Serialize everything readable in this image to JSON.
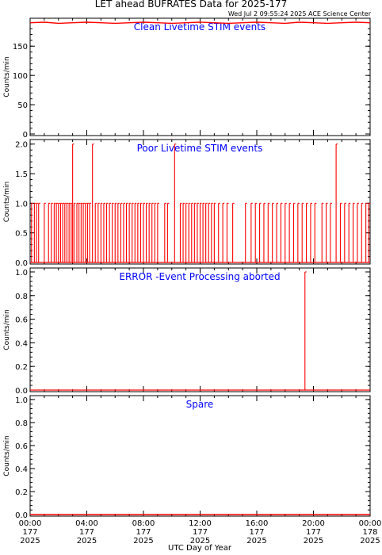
{
  "header": {
    "title": "LET ahead BUFRATES Data for 2025-177",
    "timestamp": "Wed Jul  2 09:55:24 2025 ACE Science Center"
  },
  "colors": {
    "data_line": "#ff0000",
    "panel_label": "#0000ff",
    "axis": "#000000",
    "background": "#ffffff"
  },
  "chart_data": [
    {
      "type": "line",
      "title": "Clean Livetime STIM events",
      "xlabel": "",
      "ylabel": "Counts/min",
      "xlim": [
        0,
        24
      ],
      "ylim": [
        0,
        195
      ],
      "yticks": [
        "0",
        "50",
        "100",
        "150"
      ],
      "series": [
        {
          "x": [
            0,
            1,
            2,
            3,
            4,
            5,
            6,
            7,
            8,
            9,
            10,
            11,
            12,
            13,
            14,
            15,
            16,
            17,
            18,
            19,
            20,
            21,
            22,
            23,
            24
          ],
          "y": [
            190,
            191,
            189,
            190,
            191,
            190,
            189,
            190,
            191,
            190,
            189,
            190,
            191,
            190,
            189,
            190,
            191,
            190,
            189,
            191,
            190,
            189,
            190,
            191,
            190
          ]
        }
      ]
    },
    {
      "type": "line",
      "title": "Poor Livetime STIM events",
      "xlabel": "",
      "ylabel": "Counts/min",
      "xlim": [
        0,
        24
      ],
      "ylim": [
        0,
        2.05
      ],
      "yticks": [
        "0.0",
        "0.5",
        "1.0",
        "1.5",
        "2.0"
      ],
      "spikes": [
        {
          "x": 0.1,
          "y": 1
        },
        {
          "x": 0.3,
          "y": 1
        },
        {
          "x": 0.45,
          "y": 1
        },
        {
          "x": 0.6,
          "y": 1
        },
        {
          "x": 1.0,
          "y": 1
        },
        {
          "x": 1.3,
          "y": 1
        },
        {
          "x": 1.5,
          "y": 1
        },
        {
          "x": 1.7,
          "y": 1
        },
        {
          "x": 1.85,
          "y": 1
        },
        {
          "x": 2.0,
          "y": 1
        },
        {
          "x": 2.15,
          "y": 1
        },
        {
          "x": 2.3,
          "y": 1
        },
        {
          "x": 2.45,
          "y": 1
        },
        {
          "x": 2.6,
          "y": 1
        },
        {
          "x": 2.75,
          "y": 1
        },
        {
          "x": 2.9,
          "y": 1
        },
        {
          "x": 3.0,
          "y": 2
        },
        {
          "x": 3.1,
          "y": 1
        },
        {
          "x": 3.3,
          "y": 1
        },
        {
          "x": 3.45,
          "y": 1
        },
        {
          "x": 3.6,
          "y": 1
        },
        {
          "x": 3.75,
          "y": 1
        },
        {
          "x": 3.9,
          "y": 1
        },
        {
          "x": 4.05,
          "y": 1
        },
        {
          "x": 4.2,
          "y": 1
        },
        {
          "x": 4.4,
          "y": 2
        },
        {
          "x": 4.6,
          "y": 1
        },
        {
          "x": 4.8,
          "y": 1
        },
        {
          "x": 5.0,
          "y": 1
        },
        {
          "x": 5.2,
          "y": 1
        },
        {
          "x": 5.4,
          "y": 1
        },
        {
          "x": 5.6,
          "y": 1
        },
        {
          "x": 5.8,
          "y": 1
        },
        {
          "x": 6.0,
          "y": 1
        },
        {
          "x": 6.2,
          "y": 1
        },
        {
          "x": 6.4,
          "y": 1
        },
        {
          "x": 6.6,
          "y": 1
        },
        {
          "x": 6.8,
          "y": 1
        },
        {
          "x": 7.0,
          "y": 1
        },
        {
          "x": 7.2,
          "y": 1
        },
        {
          "x": 7.4,
          "y": 1
        },
        {
          "x": 7.6,
          "y": 1
        },
        {
          "x": 7.8,
          "y": 1
        },
        {
          "x": 8.0,
          "y": 1
        },
        {
          "x": 8.2,
          "y": 1
        },
        {
          "x": 8.4,
          "y": 1
        },
        {
          "x": 8.6,
          "y": 1
        },
        {
          "x": 8.8,
          "y": 1
        },
        {
          "x": 9.0,
          "y": 1
        },
        {
          "x": 9.5,
          "y": 1
        },
        {
          "x": 9.7,
          "y": 1
        },
        {
          "x": 10.2,
          "y": 2
        },
        {
          "x": 10.6,
          "y": 1
        },
        {
          "x": 10.8,
          "y": 1
        },
        {
          "x": 11.0,
          "y": 1
        },
        {
          "x": 11.2,
          "y": 1
        },
        {
          "x": 11.4,
          "y": 1
        },
        {
          "x": 11.6,
          "y": 1
        },
        {
          "x": 11.8,
          "y": 1
        },
        {
          "x": 12.0,
          "y": 1
        },
        {
          "x": 12.2,
          "y": 1
        },
        {
          "x": 12.4,
          "y": 1
        },
        {
          "x": 12.6,
          "y": 1
        },
        {
          "x": 12.8,
          "y": 1
        },
        {
          "x": 13.0,
          "y": 1
        },
        {
          "x": 13.3,
          "y": 1
        },
        {
          "x": 13.6,
          "y": 1
        },
        {
          "x": 13.9,
          "y": 1
        },
        {
          "x": 14.3,
          "y": 1
        },
        {
          "x": 15.2,
          "y": 1
        },
        {
          "x": 15.6,
          "y": 1
        },
        {
          "x": 15.9,
          "y": 1
        },
        {
          "x": 16.2,
          "y": 1
        },
        {
          "x": 16.5,
          "y": 1
        },
        {
          "x": 16.8,
          "y": 1
        },
        {
          "x": 17.1,
          "y": 1
        },
        {
          "x": 17.4,
          "y": 1
        },
        {
          "x": 17.7,
          "y": 1
        },
        {
          "x": 18.0,
          "y": 1
        },
        {
          "x": 18.3,
          "y": 1
        },
        {
          "x": 18.6,
          "y": 1
        },
        {
          "x": 18.9,
          "y": 1
        },
        {
          "x": 19.2,
          "y": 1
        },
        {
          "x": 19.5,
          "y": 1
        },
        {
          "x": 19.8,
          "y": 1
        },
        {
          "x": 20.1,
          "y": 1
        },
        {
          "x": 20.6,
          "y": 1
        },
        {
          "x": 20.9,
          "y": 1
        },
        {
          "x": 21.2,
          "y": 1
        },
        {
          "x": 21.6,
          "y": 2
        },
        {
          "x": 21.9,
          "y": 1
        },
        {
          "x": 22.2,
          "y": 1
        },
        {
          "x": 22.5,
          "y": 1
        },
        {
          "x": 22.8,
          "y": 1
        },
        {
          "x": 23.1,
          "y": 1
        },
        {
          "x": 23.4,
          "y": 1
        },
        {
          "x": 23.7,
          "y": 1
        },
        {
          "x": 23.9,
          "y": 1
        }
      ]
    },
    {
      "type": "line",
      "title": "ERROR -Event Processing aborted",
      "xlabel": "",
      "ylabel": "Counts/min",
      "xlim": [
        0,
        24
      ],
      "ylim": [
        0,
        1.02
      ],
      "yticks": [
        "0.0",
        "0.2",
        "0.4",
        "0.6",
        "0.8",
        "1.0"
      ],
      "spikes": [
        {
          "x": 19.4,
          "y": 1
        }
      ]
    },
    {
      "type": "line",
      "title": "Spare",
      "xlabel": "UTC Day of Year",
      "ylabel": "Counts/min",
      "xlim": [
        0,
        24
      ],
      "ylim": [
        0,
        1.02
      ],
      "yticks": [
        "0.0",
        "0.2",
        "0.4",
        "0.6",
        "0.8",
        "1.0"
      ],
      "series": [
        {
          "x": [
            0,
            24
          ],
          "y": [
            0,
            0
          ]
        }
      ]
    }
  ],
  "x_axis": {
    "label": "UTC Day of Year",
    "ticks": [
      {
        "time": "00:00",
        "doy": "177",
        "year": "2025"
      },
      {
        "time": "04:00",
        "doy": "177",
        "year": "2025"
      },
      {
        "time": "08:00",
        "doy": "177",
        "year": "2025"
      },
      {
        "time": "12:00",
        "doy": "177",
        "year": "2025"
      },
      {
        "time": "16:00",
        "doy": "177",
        "year": "2025"
      },
      {
        "time": "20:00",
        "doy": "177",
        "year": "2025"
      },
      {
        "time": "00:00",
        "doy": "178",
        "year": "2025"
      }
    ]
  }
}
